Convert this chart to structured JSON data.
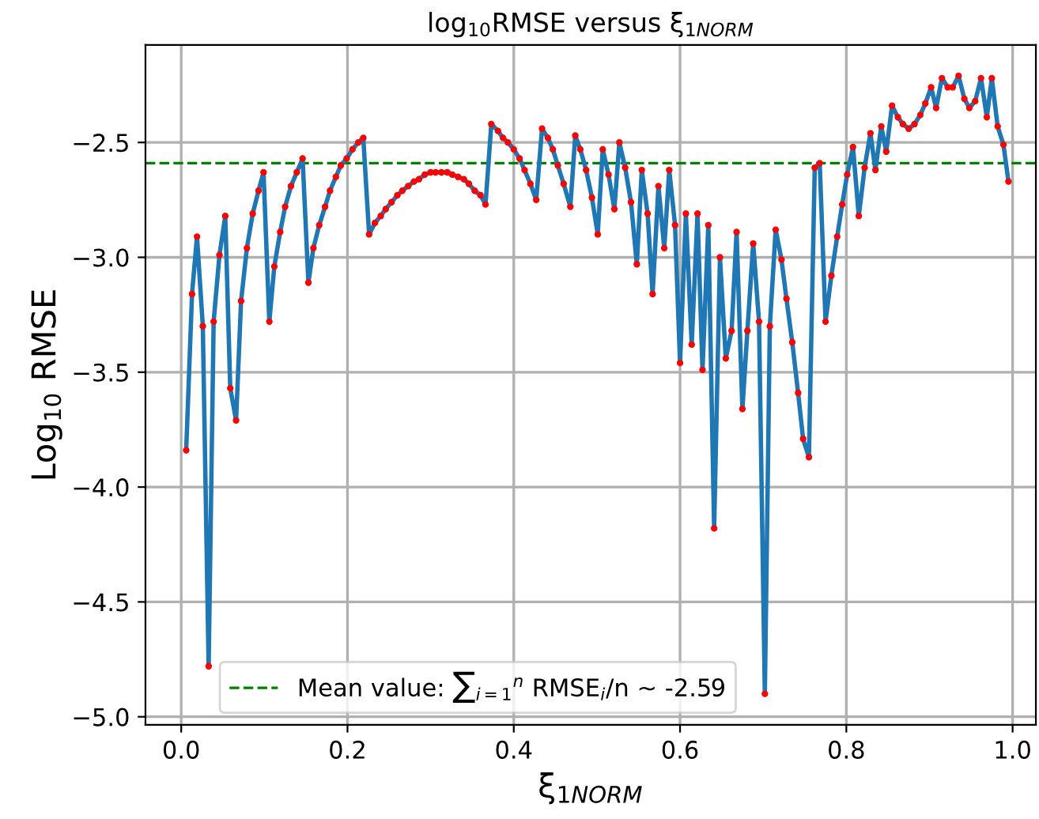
{
  "chart_data": {
    "type": "line",
    "title": "log$_{10}$RMSE versus ξ$_{1NORM}$",
    "xlabel": "ξ$_{1NORM}$",
    "ylabel": "Log$_{10}$ RMSE",
    "x": [
      0.006,
      0.013,
      0.019,
      0.026,
      0.033,
      0.039,
      0.046,
      0.053,
      0.059,
      0.066,
      0.072,
      0.079,
      0.086,
      0.093,
      0.099,
      0.106,
      0.112,
      0.119,
      0.125,
      0.132,
      0.139,
      0.146,
      0.153,
      0.159,
      0.166,
      0.173,
      0.179,
      0.186,
      0.192,
      0.199,
      0.206,
      0.213,
      0.219,
      0.226,
      0.233,
      0.24,
      0.246,
      0.253,
      0.26,
      0.266,
      0.273,
      0.28,
      0.286,
      0.293,
      0.3,
      0.306,
      0.313,
      0.32,
      0.326,
      0.333,
      0.34,
      0.346,
      0.353,
      0.36,
      0.366,
      0.373,
      0.381,
      0.387,
      0.393,
      0.4,
      0.407,
      0.413,
      0.42,
      0.427,
      0.434,
      0.441,
      0.447,
      0.453,
      0.46,
      0.468,
      0.474,
      0.48,
      0.487,
      0.494,
      0.501,
      0.507,
      0.514,
      0.521,
      0.527,
      0.534,
      0.541,
      0.548,
      0.554,
      0.561,
      0.567,
      0.574,
      0.581,
      0.587,
      0.594,
      0.6,
      0.607,
      0.614,
      0.621,
      0.627,
      0.634,
      0.641,
      0.648,
      0.655,
      0.662,
      0.668,
      0.675,
      0.681,
      0.688,
      0.695,
      0.702,
      0.708,
      0.715,
      0.722,
      0.728,
      0.735,
      0.742,
      0.748,
      0.755,
      0.762,
      0.768,
      0.775,
      0.782,
      0.789,
      0.795,
      0.801,
      0.808,
      0.815,
      0.822,
      0.829,
      0.835,
      0.842,
      0.848,
      0.855,
      0.862,
      0.868,
      0.875,
      0.882,
      0.889,
      0.895,
      0.902,
      0.908,
      0.915,
      0.922,
      0.928,
      0.935,
      0.942,
      0.948,
      0.955,
      0.962,
      0.969,
      0.975,
      0.982,
      0.989,
      0.995
    ],
    "series": [
      {
        "color": "#1f77b4",
        "marker": "none",
        "values": [
          -3.84,
          -3.16,
          -2.91,
          -3.3,
          -4.78,
          -3.28,
          -2.99,
          -2.82,
          -3.57,
          -3.71,
          -3.19,
          -2.96,
          -2.81,
          -2.71,
          -2.63,
          -3.28,
          -3.04,
          -2.89,
          -2.78,
          -2.69,
          -2.63,
          -2.57,
          -3.11,
          -2.96,
          -2.86,
          -2.78,
          -2.71,
          -2.65,
          -2.6,
          -2.57,
          -2.53,
          -2.5,
          -2.48,
          -2.9,
          -2.85,
          -2.82,
          -2.79,
          -2.76,
          -2.73,
          -2.71,
          -2.69,
          -2.67,
          -2.66,
          -2.64,
          -2.63,
          -2.63,
          -2.63,
          -2.63,
          -2.64,
          -2.65,
          -2.66,
          -2.68,
          -2.71,
          -2.73,
          -2.77,
          -2.42,
          -2.45,
          -2.48,
          -2.5,
          -2.53,
          -2.57,
          -2.62,
          -2.68,
          -2.75,
          -2.44,
          -2.48,
          -2.53,
          -2.6,
          -2.68,
          -2.78,
          -2.47,
          -2.53,
          -2.62,
          -2.74,
          -2.9,
          -2.53,
          -2.64,
          -2.79,
          -2.5,
          -2.61,
          -2.76,
          -3.03,
          -2.62,
          -2.81,
          -3.16,
          -2.69,
          -2.96,
          -2.62,
          -2.86,
          -3.46,
          -2.81,
          -3.38,
          -2.81,
          -3.49,
          -2.86,
          -4.18,
          -3.0,
          -3.44,
          -3.32,
          -2.89,
          -3.66,
          -3.32,
          -2.94,
          -3.28,
          -4.9,
          -3.3,
          -2.88,
          -3.01,
          -3.18,
          -3.37,
          -3.59,
          -3.79,
          -3.87,
          -2.61,
          -2.59,
          -3.28,
          -3.08,
          -2.91,
          -2.77,
          -2.64,
          -2.52,
          -2.82,
          -2.61,
          -2.46,
          -2.62,
          -2.43,
          -2.54,
          -2.34,
          -2.39,
          -2.42,
          -2.44,
          -2.42,
          -2.38,
          -2.33,
          -2.26,
          -2.35,
          -2.22,
          -2.26,
          -2.26,
          -2.21,
          -2.31,
          -2.35,
          -2.32,
          -2.22,
          -2.39,
          -2.22,
          -2.43,
          -2.51,
          -2.67
        ]
      },
      {
        "type": "scatter",
        "color": "#ff0000",
        "marker": "circle",
        "values": [
          -3.84,
          -3.16,
          -2.91,
          -3.3,
          -4.78,
          -3.28,
          -2.99,
          -2.82,
          -3.57,
          -3.71,
          -3.19,
          -2.96,
          -2.81,
          -2.71,
          -2.63,
          -3.28,
          -3.04,
          -2.89,
          -2.78,
          -2.69,
          -2.63,
          -2.57,
          -3.11,
          -2.96,
          -2.86,
          -2.78,
          -2.71,
          -2.65,
          -2.6,
          -2.57,
          -2.53,
          -2.5,
          -2.48,
          -2.9,
          -2.85,
          -2.82,
          -2.79,
          -2.76,
          -2.73,
          -2.71,
          -2.69,
          -2.67,
          -2.66,
          -2.64,
          -2.63,
          -2.63,
          -2.63,
          -2.63,
          -2.64,
          -2.65,
          -2.66,
          -2.68,
          -2.71,
          -2.73,
          -2.77,
          -2.42,
          -2.45,
          -2.48,
          -2.5,
          -2.53,
          -2.57,
          -2.62,
          -2.68,
          -2.75,
          -2.44,
          -2.48,
          -2.53,
          -2.6,
          -2.68,
          -2.78,
          -2.47,
          -2.53,
          -2.62,
          -2.74,
          -2.9,
          -2.53,
          -2.64,
          -2.79,
          -2.5,
          -2.61,
          -2.76,
          -3.03,
          -2.62,
          -2.81,
          -3.16,
          -2.69,
          -2.96,
          -2.62,
          -2.86,
          -3.46,
          -2.81,
          -3.38,
          -2.81,
          -3.49,
          -2.86,
          -4.18,
          -3.0,
          -3.44,
          -3.32,
          -2.89,
          -3.66,
          -3.32,
          -2.94,
          -3.28,
          -4.9,
          -3.3,
          -2.88,
          -3.01,
          -3.18,
          -3.37,
          -3.59,
          -3.79,
          -3.87,
          -2.61,
          -2.59,
          -3.28,
          -3.08,
          -2.91,
          -2.77,
          -2.64,
          -2.52,
          -2.82,
          -2.61,
          -2.46,
          -2.62,
          -2.43,
          -2.54,
          -2.34,
          -2.39,
          -2.42,
          -2.44,
          -2.42,
          -2.38,
          -2.33,
          -2.26,
          -2.35,
          -2.22,
          -2.26,
          -2.26,
          -2.21,
          -2.31,
          -2.35,
          -2.32,
          -2.22,
          -2.39,
          -2.22,
          -2.43,
          -2.51,
          -2.67
        ]
      }
    ],
    "ref_lines": [
      {
        "axis": "y",
        "value": -2.59,
        "label": "Mean value: ∑$_{i=1}$$^{n}$ RMSE$_{i}$/n ~ -2.59",
        "color": "#008000",
        "line_style": "dashed"
      }
    ],
    "xlim": [
      -0.043,
      1.028
    ],
    "ylim": [
      -5.035,
      -2.076
    ],
    "xticks": [
      {
        "value": 0,
        "label": "0.0"
      },
      0.2,
      0.4,
      0.6,
      0.8,
      {
        "value": 1,
        "label": "1.0"
      }
    ],
    "yticks": [
      {
        "value": -5,
        "label": "−5.0"
      },
      {
        "value": -4.5,
        "label": "−4.5"
      },
      {
        "value": -4,
        "label": "−4.0"
      },
      {
        "value": -3.5,
        "label": "−3.5"
      },
      {
        "value": -3,
        "label": "−3.0"
      },
      {
        "value": -2.5,
        "label": "−2.5"
      }
    ],
    "grid": true,
    "legend": "bottom left"
  }
}
